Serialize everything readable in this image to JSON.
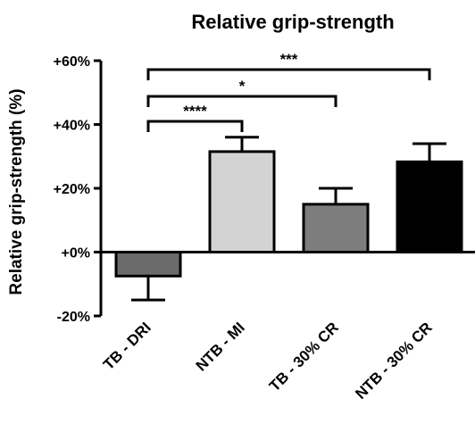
{
  "chart_data": {
    "type": "bar",
    "title": "Relative grip-strength",
    "xlabel": "",
    "ylabel": "Relative grip-strength (%)",
    "ylim": [
      -20,
      60
    ],
    "yticks": [
      "-20%",
      "+0%",
      "+20%",
      "+40%",
      "+60%"
    ],
    "ytick_values": [
      -20,
      0,
      20,
      40,
      60
    ],
    "grid": false,
    "categories": [
      "TB - DRI",
      "NTB - MI",
      "TB - 30% CR",
      "NTB - 30% CR"
    ],
    "values": [
      -7.5,
      31.5,
      15,
      28.3
    ],
    "errors": [
      7.5,
      4.5,
      5,
      5.7
    ],
    "bar_colors": [
      "#6b6b6b",
      "#d3d3d3",
      "#7d7d7d",
      "#000000"
    ],
    "significance": [
      {
        "from": 0,
        "to": 1,
        "label": "****"
      },
      {
        "from": 0,
        "to": 2,
        "label": "*"
      },
      {
        "from": 0,
        "to": 3,
        "label": "***"
      }
    ]
  }
}
